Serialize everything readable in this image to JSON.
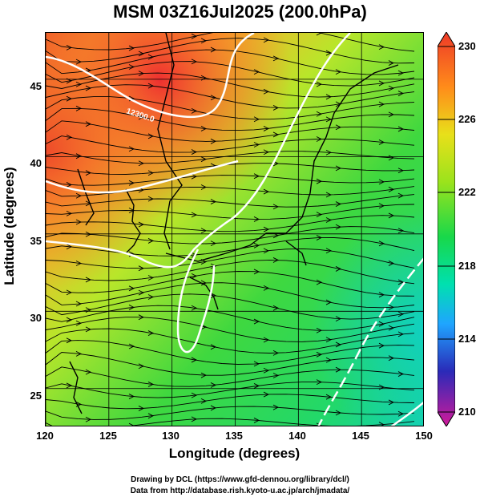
{
  "title": "MSM 03Z16Jul2025 (200.0hPa)",
  "map": {
    "x_axis": {
      "label": "Longitude (degrees)",
      "range": [
        120,
        150
      ],
      "ticks": [
        "120",
        "125",
        "130",
        "135",
        "140",
        "145",
        "150"
      ]
    },
    "y_axis": {
      "label": "Latitude  (degrees)",
      "range": [
        22.5,
        48
      ],
      "ticks": [
        "25",
        "30",
        "35",
        "40",
        "45"
      ]
    },
    "field": "200hPa temperature (K) with streamlines",
    "contours": [
      {
        "value": "12300.0",
        "color": "#ffffff"
      }
    ]
  },
  "colorbar": {
    "range": [
      210,
      230
    ],
    "ticks": [
      "230",
      "226",
      "222",
      "218",
      "214",
      "210"
    ],
    "colors": [
      "#d21a9a",
      "#2a2ab8",
      "#1fa5ff",
      "#00e0b0",
      "#18d84a",
      "#9be31c",
      "#e8e01a",
      "#ff8c1a",
      "#ee3a28"
    ]
  },
  "credits": [
    "Drawing by DCL (https://www.gfd-dennou.org/library/dcl/)",
    "Data from http://database.rish.kyoto-u.ac.jp/arch/jmadata/"
  ]
}
